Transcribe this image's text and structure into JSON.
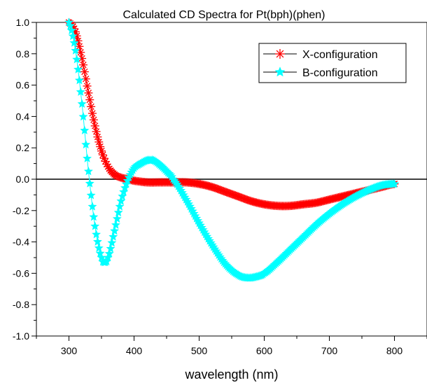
{
  "chart_data": {
    "type": "line",
    "title": "Calculated CD Spectra for Pt(bph)(phen)",
    "xlabel": "wavelength (nm)",
    "ylabel": "",
    "xlim": [
      250,
      850
    ],
    "ylim": [
      -1.0,
      1.0
    ],
    "x_ticks": [
      "300",
      "400",
      "500",
      "600",
      "700",
      "800"
    ],
    "y_ticks": [
      "1.0",
      "0.8",
      "0.6",
      "0.4",
      "0.2",
      "0.0",
      "-0.2",
      "-0.4",
      "-0.6",
      "-0.8",
      "-1.0"
    ],
    "zero_line": 0.0,
    "grid": false,
    "legend_position": "top-right",
    "series": [
      {
        "name": "X-configuration",
        "color": "#ff0000",
        "marker": "asterisk",
        "x": [
          300,
          310,
          320,
          330,
          340,
          350,
          360,
          370,
          380,
          390,
          400,
          420,
          440,
          460,
          480,
          500,
          520,
          540,
          560,
          580,
          600,
          620,
          640,
          660,
          680,
          700,
          720,
          740,
          760,
          780,
          800
        ],
        "y": [
          1.0,
          0.94,
          0.77,
          0.55,
          0.34,
          0.18,
          0.08,
          0.03,
          0.01,
          0.0,
          -0.01,
          -0.02,
          -0.02,
          -0.02,
          -0.02,
          -0.03,
          -0.05,
          -0.08,
          -0.11,
          -0.14,
          -0.16,
          -0.17,
          -0.17,
          -0.16,
          -0.15,
          -0.13,
          -0.11,
          -0.09,
          -0.07,
          -0.05,
          -0.03
        ]
      },
      {
        "name": "B-configuration",
        "color": "#00ffff",
        "marker": "star",
        "x": [
          300,
          310,
          320,
          330,
          340,
          350,
          355,
          360,
          370,
          380,
          390,
          400,
          410,
          420,
          425,
          430,
          440,
          450,
          460,
          480,
          500,
          520,
          540,
          560,
          575,
          590,
          600,
          620,
          640,
          660,
          680,
          700,
          720,
          740,
          760,
          780,
          800
        ],
        "y": [
          1.0,
          0.82,
          0.48,
          0.05,
          -0.3,
          -0.5,
          -0.53,
          -0.5,
          -0.33,
          -0.14,
          -0.01,
          0.07,
          0.1,
          0.12,
          0.12,
          0.12,
          0.09,
          0.05,
          0.0,
          -0.13,
          -0.28,
          -0.42,
          -0.54,
          -0.61,
          -0.63,
          -0.62,
          -0.6,
          -0.53,
          -0.45,
          -0.37,
          -0.29,
          -0.22,
          -0.16,
          -0.11,
          -0.07,
          -0.04,
          -0.03
        ]
      }
    ]
  }
}
